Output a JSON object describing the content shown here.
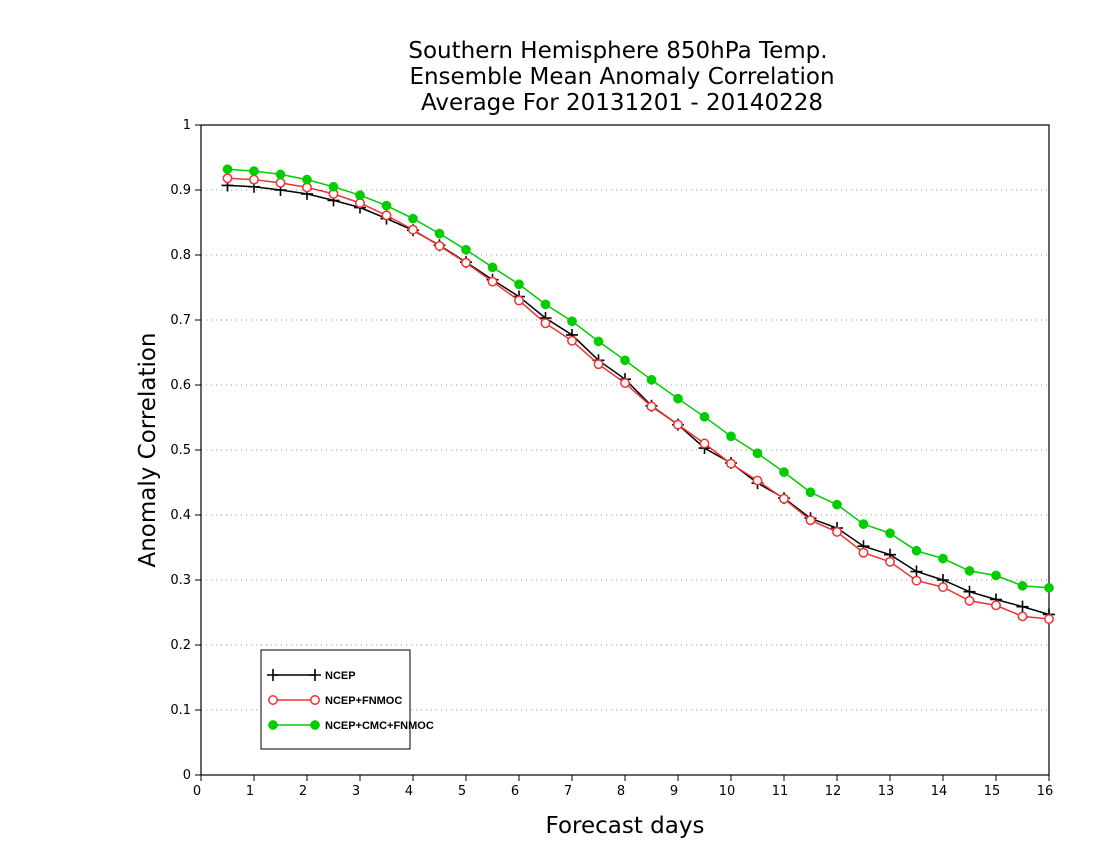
{
  "chart_data": {
    "type": "line",
    "title": [
      "Southern Hemisphere 850hPa Temp.",
      "Ensemble Mean Anomaly Correlation",
      "Average For 20131201 - 20140228"
    ],
    "xlabel": "Forecast days",
    "ylabel": "Anomaly Correlation",
    "xlim": [
      0,
      16
    ],
    "ylim": [
      0,
      1
    ],
    "xticks": [
      "0",
      "1",
      "2",
      "3",
      "4",
      "5",
      "6",
      "7",
      "8",
      "9",
      "10",
      "11",
      "12",
      "13",
      "14",
      "15",
      "16"
    ],
    "yticks": [
      "0",
      "0.1",
      "0.2",
      "0.3",
      "0.4",
      "0.5",
      "0.6",
      "0.7",
      "0.8",
      "0.9",
      "1"
    ],
    "grid": "horizontal dotted",
    "legend_position": "bottom-left",
    "x": [
      0.5,
      1,
      1.5,
      2,
      2.5,
      3,
      3.5,
      4,
      4.5,
      5,
      5.5,
      6,
      6.5,
      7,
      7.5,
      8,
      8.5,
      9,
      9.5,
      10,
      10.5,
      11,
      11.5,
      12,
      12.5,
      13,
      13.5,
      14,
      14.5,
      15,
      15.5,
      16
    ],
    "series": [
      {
        "name": "NCEP",
        "color": "#000000",
        "marker": "plus",
        "values": [
          0.907,
          0.905,
          0.9,
          0.894,
          0.884,
          0.873,
          0.856,
          0.838,
          0.815,
          0.789,
          0.762,
          0.736,
          0.703,
          0.677,
          0.638,
          0.609,
          0.568,
          0.539,
          0.503,
          0.48,
          0.449,
          0.426,
          0.395,
          0.38,
          0.352,
          0.339,
          0.313,
          0.3,
          0.282,
          0.27,
          0.259,
          0.247
        ]
      },
      {
        "name": "NCEP+FNMOC",
        "color": "#ee3333",
        "marker": "open-circle",
        "values": [
          0.918,
          0.916,
          0.911,
          0.904,
          0.894,
          0.88,
          0.861,
          0.839,
          0.814,
          0.788,
          0.759,
          0.73,
          0.695,
          0.668,
          0.632,
          0.603,
          0.567,
          0.539,
          0.51,
          0.479,
          0.453,
          0.425,
          0.392,
          0.374,
          0.342,
          0.328,
          0.299,
          0.289,
          0.268,
          0.261,
          0.244,
          0.24
        ]
      },
      {
        "name": "NCEP+CMC+FNMOC",
        "color": "#00cc00",
        "marker": "filled-circle",
        "values": [
          0.932,
          0.929,
          0.924,
          0.916,
          0.905,
          0.892,
          0.876,
          0.856,
          0.833,
          0.808,
          0.781,
          0.755,
          0.724,
          0.698,
          0.667,
          0.638,
          0.608,
          0.579,
          0.551,
          0.521,
          0.495,
          0.466,
          0.435,
          0.416,
          0.386,
          0.372,
          0.345,
          0.333,
          0.314,
          0.307,
          0.291,
          0.288
        ]
      }
    ]
  }
}
